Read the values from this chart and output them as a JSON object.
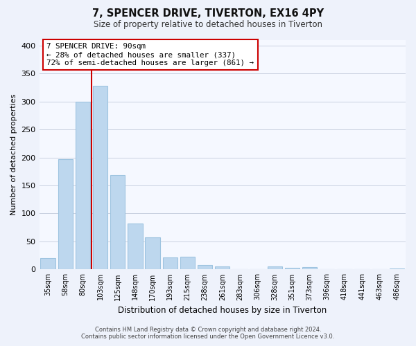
{
  "title": "7, SPENCER DRIVE, TIVERTON, EX16 4PY",
  "subtitle": "Size of property relative to detached houses in Tiverton",
  "xlabel": "Distribution of detached houses by size in Tiverton",
  "ylabel": "Number of detached properties",
  "bar_labels": [
    "35sqm",
    "58sqm",
    "80sqm",
    "103sqm",
    "125sqm",
    "148sqm",
    "170sqm",
    "193sqm",
    "215sqm",
    "238sqm",
    "261sqm",
    "283sqm",
    "306sqm",
    "328sqm",
    "351sqm",
    "373sqm",
    "396sqm",
    "418sqm",
    "441sqm",
    "463sqm",
    "486sqm"
  ],
  "bar_values": [
    20,
    197,
    300,
    328,
    168,
    82,
    57,
    21,
    23,
    8,
    6,
    0,
    0,
    5,
    3,
    4,
    0,
    0,
    0,
    0,
    2
  ],
  "bar_color": "#bdd7ee",
  "bar_edge_color": "#9ec4e0",
  "red_line_x": 2.5,
  "red_line_color": "#cc0000",
  "ylim": [
    0,
    410
  ],
  "yticks": [
    0,
    50,
    100,
    150,
    200,
    250,
    300,
    350,
    400
  ],
  "annotation_title": "7 SPENCER DRIVE: 90sqm",
  "annotation_line1": "← 28% of detached houses are smaller (337)",
  "annotation_line2": "72% of semi-detached houses are larger (861) →",
  "footer_line1": "Contains HM Land Registry data © Crown copyright and database right 2024.",
  "footer_line2": "Contains public sector information licensed under the Open Government Licence v3.0.",
  "background_color": "#eef2fb",
  "plot_bg_color": "#f5f8ff",
  "grid_color": "#c8d0e0"
}
